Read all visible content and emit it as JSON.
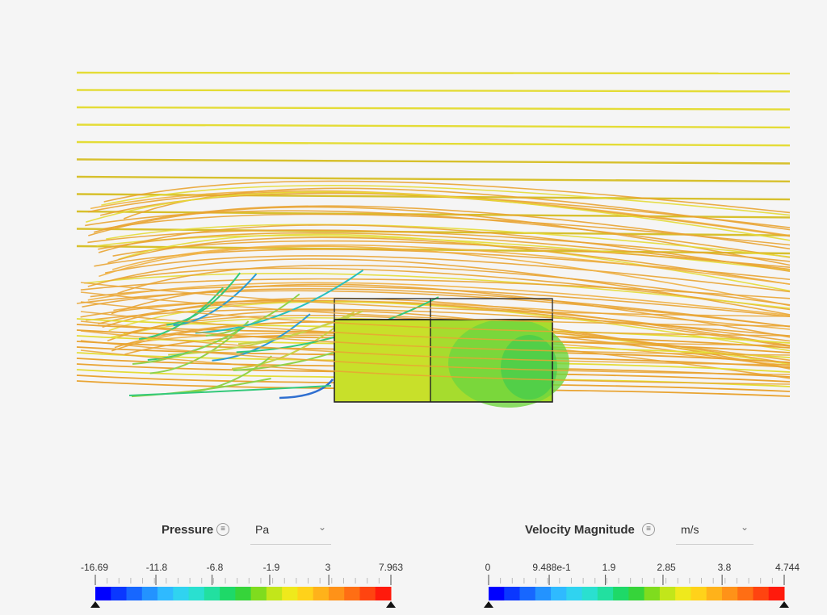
{
  "viewer": {
    "background": "#f5f5f5",
    "streamline_colors": [
      "#e4dc36",
      "#d7c02c",
      "#e9a432",
      "#f0b040",
      "#c8d34a",
      "#8fd24b",
      "#33c97a",
      "#27c0c0",
      "#2a9cd6",
      "#2f6fd0"
    ],
    "body_colors": [
      "#c8e02a",
      "#a6dc2e",
      "#6fd63e",
      "#42cc4e"
    ]
  },
  "legends": {
    "pressure": {
      "title": "Pressure",
      "menu_icon": "≡",
      "unit": "Pa",
      "chevron": "⌄",
      "tick_labels": [
        "-16.69",
        "-11.8",
        "-6.8",
        "-1.9",
        "3",
        "7.963"
      ]
    },
    "velocity": {
      "title": "Velocity Magnitude",
      "menu_icon": "≡",
      "unit": "m/s",
      "chevron": "⌄",
      "tick_labels": [
        "0",
        "9.488e-1",
        "1.9",
        "2.85",
        "3.8",
        "4.744"
      ]
    },
    "colormap": [
      "#0000ff",
      "#0a37ff",
      "#1767ff",
      "#2393ff",
      "#2fbaff",
      "#30d3f0",
      "#2ae0d0",
      "#22e0a0",
      "#1ed968",
      "#36d43a",
      "#7fdc1e",
      "#c2e61a",
      "#efe91c",
      "#ffd21a",
      "#ffb21a",
      "#ff9218",
      "#ff6e14",
      "#ff4410",
      "#ff1a0c"
    ]
  }
}
